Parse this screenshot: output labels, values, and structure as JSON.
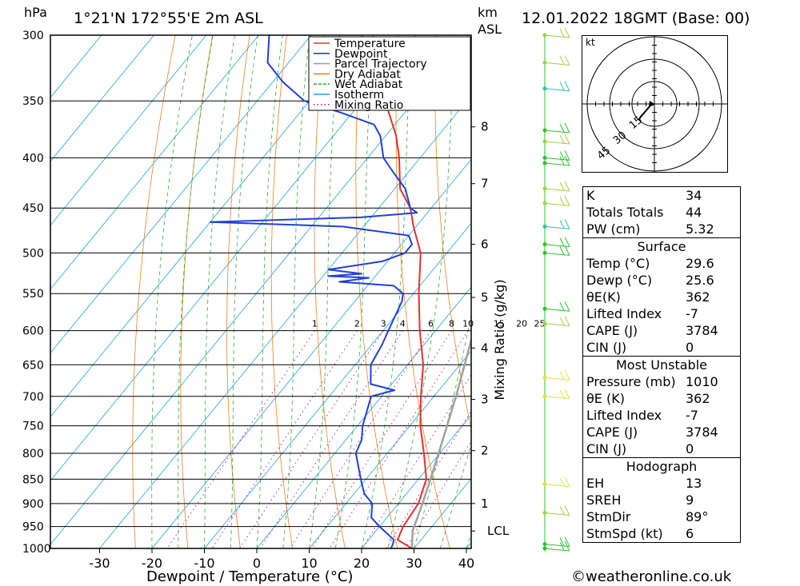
{
  "header": {
    "hpa_label": "hPa",
    "location": "1°21'N  172°55'E  2m  ASL",
    "km_label": "km",
    "asl_label": "ASL",
    "datetime": "12.01.2022  18GMT  (Base: 00)"
  },
  "chart_data": {
    "type": "skew-t log-p",
    "xlabel": "Dewpoint / Temperature (°C)",
    "ylabel_left": "hPa",
    "ylabel_right": "Mixing Ratio (g/kg)",
    "pressure_levels": [
      300,
      350,
      400,
      450,
      500,
      550,
      600,
      650,
      700,
      750,
      800,
      850,
      900,
      950,
      1000
    ],
    "temperature_ticks": [
      -30,
      -20,
      -10,
      0,
      10,
      20,
      30,
      40
    ],
    "km_ticks": [
      {
        "km": 1,
        "p": 900
      },
      {
        "km": 2,
        "p": 795
      },
      {
        "km": 3,
        "p": 705
      },
      {
        "km": 4,
        "p": 625
      },
      {
        "km": 5,
        "p": 555
      },
      {
        "km": 6,
        "p": 490
      },
      {
        "km": 7,
        "p": 425
      },
      {
        "km": 8,
        "p": 372
      }
    ],
    "lcl": {
      "label": "LCL",
      "p": 960
    },
    "mixing_ratio_labels": [
      "1",
      "2",
      "3",
      "4",
      "6",
      "8",
      "10",
      "15",
      "20",
      "25"
    ],
    "mixing_ratio_values": [
      1,
      2,
      3,
      4,
      6,
      8,
      10,
      15,
      20,
      25
    ],
    "legend": [
      {
        "name": "Temperature",
        "color": "#e8302c",
        "style": "solid"
      },
      {
        "name": "Dewpoint",
        "color": "#2040d8",
        "style": "solid"
      },
      {
        "name": "Parcel Trajectory",
        "color": "#a0a0a0",
        "style": "solid"
      },
      {
        "name": "Dry Adiabat",
        "color": "#f08020",
        "style": "solid"
      },
      {
        "name": "Wet Adiabat",
        "color": "#30b030",
        "style": "dashed"
      },
      {
        "name": "Isotherm",
        "color": "#20a0e0",
        "style": "solid"
      },
      {
        "name": "Mixing Ratio",
        "color": "#c02090",
        "style": "dotted"
      }
    ],
    "series": [
      {
        "name": "Temperature",
        "points": [
          [
            1000,
            29.6
          ],
          [
            980,
            25.5
          ],
          [
            950,
            24.5
          ],
          [
            900,
            23.8
          ],
          [
            850,
            21.5
          ],
          [
            800,
            17
          ],
          [
            750,
            12
          ],
          [
            700,
            7.5
          ],
          [
            650,
            3
          ],
          [
            600,
            -3
          ],
          [
            550,
            -9
          ],
          [
            500,
            -15
          ],
          [
            470,
            -20.5
          ],
          [
            450,
            -24
          ],
          [
            430,
            -29
          ],
          [
            400,
            -34
          ],
          [
            380,
            -38
          ],
          [
            360,
            -43
          ],
          [
            340,
            -48
          ]
        ]
      },
      {
        "name": "Dewpoint",
        "points": [
          [
            1000,
            25.6
          ],
          [
            990,
            25.3
          ],
          [
            980,
            24.8
          ],
          [
            950,
            20
          ],
          [
            930,
            17
          ],
          [
            900,
            15
          ],
          [
            880,
            12
          ],
          [
            860,
            10
          ],
          [
            850,
            9
          ],
          [
            800,
            4
          ],
          [
            775,
            3
          ],
          [
            750,
            1
          ],
          [
            700,
            -2
          ],
          [
            690,
            1.5
          ],
          [
            680,
            -4
          ],
          [
            650,
            -7
          ],
          [
            620,
            -8
          ],
          [
            600,
            -9
          ],
          [
            560,
            -11
          ],
          [
            550,
            -12
          ],
          [
            540,
            -15
          ],
          [
            535,
            -26
          ],
          [
            530,
            -21
          ],
          [
            528,
            -29
          ],
          [
            525,
            -23
          ],
          [
            520,
            -30
          ],
          [
            510,
            -21
          ],
          [
            500,
            -18
          ],
          [
            490,
            -18
          ],
          [
            480,
            -20
          ],
          [
            470,
            -34
          ],
          [
            465,
            -60
          ],
          [
            460,
            -32
          ],
          [
            455,
            -22
          ],
          [
            450,
            -24
          ],
          [
            430,
            -28
          ],
          [
            420,
            -31
          ],
          [
            410,
            -34
          ],
          [
            400,
            -37
          ],
          [
            380,
            -41
          ],
          [
            370,
            -44
          ],
          [
            360,
            -52
          ],
          [
            350,
            -61
          ],
          [
            335,
            -68
          ],
          [
            320,
            -74
          ],
          [
            300,
            -78
          ]
        ]
      },
      {
        "name": "Parcel Trajectory",
        "points": [
          [
            1000,
            29.6
          ],
          [
            960,
            27
          ],
          [
            900,
            24.6
          ],
          [
            850,
            22.3
          ],
          [
            800,
            19.8
          ],
          [
            750,
            17.1
          ],
          [
            700,
            14.2
          ],
          [
            650,
            10.9
          ],
          [
            600,
            7.3
          ],
          [
            550,
            3.2
          ],
          [
            500,
            -1.7
          ],
          [
            450,
            -7.4
          ],
          [
            400,
            -14.4
          ],
          [
            370,
            -19.5
          ]
        ]
      }
    ],
    "wind_barbs": [
      {
        "p": 300,
        "color": "#a0d040"
      },
      {
        "p": 320,
        "color": "#a0d040"
      },
      {
        "p": 340,
        "color": "#30c0a0"
      },
      {
        "p": 375,
        "color": "#30c030"
      },
      {
        "p": 385,
        "color": "#a0d040"
      },
      {
        "p": 400,
        "color": "#30c030"
      },
      {
        "p": 405,
        "color": "#30c030"
      },
      {
        "p": 430,
        "color": "#a0d040"
      },
      {
        "p": 445,
        "color": "#a0d040"
      },
      {
        "p": 470,
        "color": "#30c0a0"
      },
      {
        "p": 490,
        "color": "#30c030"
      },
      {
        "p": 500,
        "color": "#30c030"
      },
      {
        "p": 570,
        "color": "#30c030"
      },
      {
        "p": 590,
        "color": "#a0d040"
      },
      {
        "p": 670,
        "color": "#e0e040"
      },
      {
        "p": 700,
        "color": "#e0e040"
      },
      {
        "p": 860,
        "color": "#e0e040"
      },
      {
        "p": 920,
        "color": "#a0d040"
      },
      {
        "p": 990,
        "color": "#30c030"
      },
      {
        "p": 1000,
        "color": "#30c030"
      }
    ],
    "hodograph": {
      "unit": "kt",
      "ring_labels": [
        "15",
        "30",
        "45"
      ]
    }
  },
  "indices": {
    "top": [
      {
        "label": "K",
        "value": "34"
      },
      {
        "label": "Totals Totals",
        "value": "44"
      },
      {
        "label": "PW (cm)",
        "value": "5.32"
      }
    ],
    "surface": {
      "title": "Surface",
      "rows": [
        {
          "label": "Temp (°C)",
          "value": "29.6"
        },
        {
          "label": "Dewp (°C)",
          "value": "25.6"
        },
        {
          "label": "θE(K)",
          "value": "362"
        },
        {
          "label": "Lifted Index",
          "value": "-7"
        },
        {
          "label": "CAPE (J)",
          "value": "3784"
        },
        {
          "label": "CIN (J)",
          "value": "0"
        }
      ]
    },
    "most_unstable": {
      "title": "Most Unstable",
      "rows": [
        {
          "label": "Pressure (mb)",
          "value": "1010"
        },
        {
          "label": "θE (K)",
          "value": "362"
        },
        {
          "label": "Lifted Index",
          "value": "-7"
        },
        {
          "label": "CAPE (J)",
          "value": "3784"
        },
        {
          "label": "CIN (J)",
          "value": "0"
        }
      ]
    },
    "hodograph": {
      "title": "Hodograph",
      "rows": [
        {
          "label": "EH",
          "value": "13"
        },
        {
          "label": "SREH",
          "value": "9"
        },
        {
          "label": "StmDir",
          "value": "89°"
        },
        {
          "label": "StmSpd (kt)",
          "value": "6"
        }
      ]
    }
  },
  "footer": {
    "copyright": "©weatheronline.co.uk"
  }
}
